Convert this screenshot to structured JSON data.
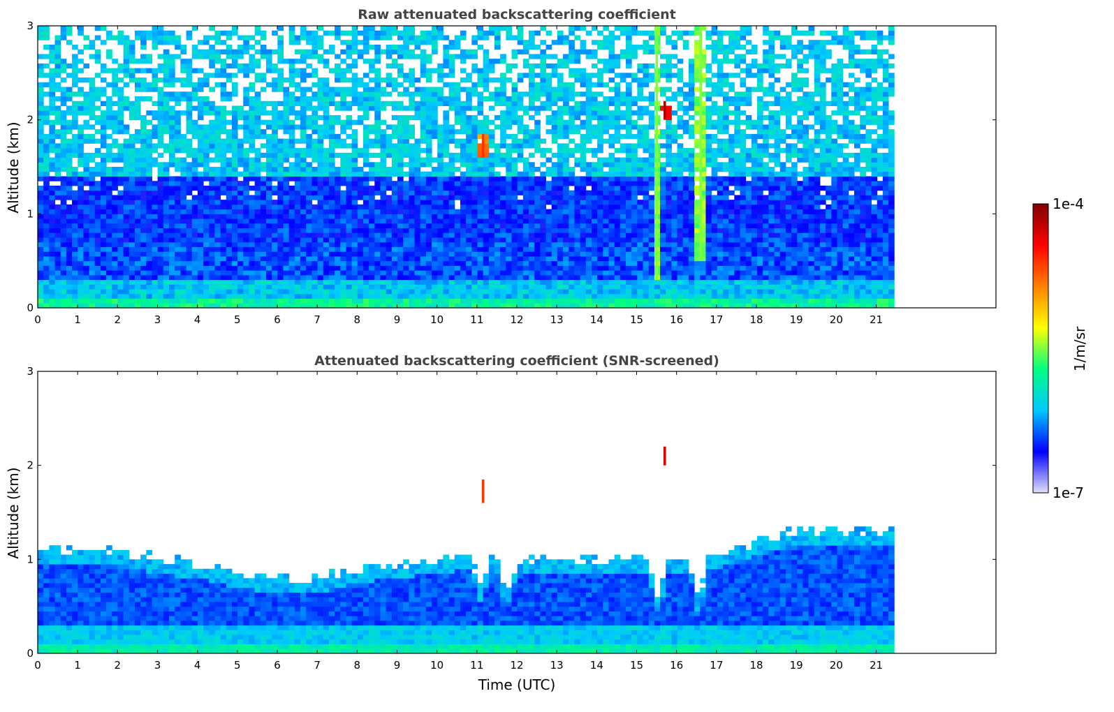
{
  "chart_data": [
    {
      "type": "heatmap",
      "title": "Raw attenuated backscattering coefficient",
      "xlabel": "",
      "ylabel": "Altitude (km)",
      "xlim": [
        0,
        24
      ],
      "ylim": [
        0,
        3
      ],
      "x_ticks": [
        "0",
        "1",
        "2",
        "3",
        "4",
        "5",
        "6",
        "7",
        "8",
        "9",
        "10",
        "11",
        "12",
        "13",
        "14",
        "15",
        "16",
        "17",
        "18",
        "19",
        "20",
        "21"
      ],
      "y_ticks": [
        "0",
        "1",
        "2",
        "3"
      ],
      "data_extent_hours": [
        0,
        21.45
      ],
      "grid": false,
      "layers": [
        {
          "altitude_km": [
            0.0,
            0.1
          ],
          "level": 0.4
        },
        {
          "altitude_km": [
            0.1,
            0.3
          ],
          "level": 0.3
        },
        {
          "altitude_km": [
            0.3,
            0.7
          ],
          "level": 0.2
        },
        {
          "altitude_km": [
            0.7,
            1.4
          ],
          "level": 0.18
        },
        {
          "altitude_km": [
            1.4,
            3.0
          ],
          "level": 0.3
        }
      ],
      "features": [
        {
          "time": 11.15,
          "altitude_km": [
            1.6,
            1.85
          ],
          "level": 0.8
        },
        {
          "time": 15.7,
          "altitude_km": [
            2.0,
            2.2
          ],
          "level": 0.95
        },
        {
          "time": 15.5,
          "altitude_km": [
            0.3,
            3.0
          ],
          "level": 0.5
        },
        {
          "time": 16.6,
          "altitude_km": [
            0.5,
            3.0
          ],
          "level": 0.5
        }
      ]
    },
    {
      "type": "heatmap",
      "title": "Attenuated backscattering coefficient (SNR-screened)",
      "xlabel": "Time (UTC)",
      "ylabel": "Altitude (km)",
      "xlim": [
        0,
        24
      ],
      "ylim": [
        0,
        3
      ],
      "x_ticks": [
        "0",
        "1",
        "2",
        "3",
        "4",
        "5",
        "6",
        "7",
        "8",
        "9",
        "10",
        "11",
        "12",
        "13",
        "14",
        "15",
        "16",
        "17",
        "18",
        "19",
        "20",
        "21"
      ],
      "y_ticks": [
        "0",
        "1",
        "2",
        "3"
      ],
      "data_extent_hours": [
        0,
        21.45
      ],
      "grid": false,
      "boundary_layer_top_km": [
        {
          "t": 0,
          "h": 1.1
        },
        {
          "t": 1,
          "h": 1.1
        },
        {
          "t": 2,
          "h": 1.08
        },
        {
          "t": 3,
          "h": 1.0
        },
        {
          "t": 4,
          "h": 0.95
        },
        {
          "t": 5,
          "h": 0.85
        },
        {
          "t": 6,
          "h": 0.8
        },
        {
          "t": 7,
          "h": 0.8
        },
        {
          "t": 8,
          "h": 0.9
        },
        {
          "t": 9,
          "h": 0.95
        },
        {
          "t": 10,
          "h": 1.0
        },
        {
          "t": 11,
          "h": 1.05
        },
        {
          "t": 12,
          "h": 1.0
        },
        {
          "t": 13,
          "h": 1.0
        },
        {
          "t": 14,
          "h": 1.0
        },
        {
          "t": 15,
          "h": 1.0
        },
        {
          "t": 16,
          "h": 1.0
        },
        {
          "t": 17,
          "h": 1.05
        },
        {
          "t": 18,
          "h": 1.2
        },
        {
          "t": 19,
          "h": 1.3
        },
        {
          "t": 20,
          "h": 1.3
        },
        {
          "t": 21,
          "h": 1.3
        },
        {
          "t": 21.45,
          "h": 1.3
        }
      ],
      "dips": [
        {
          "time": 11.1,
          "to_km": 0.7
        },
        {
          "time": 11.75,
          "to_km": 0.6
        },
        {
          "time": 15.55,
          "to_km": 0.55
        },
        {
          "time": 16.55,
          "to_km": 0.55
        }
      ],
      "features": [
        {
          "time": 11.15,
          "altitude_km": [
            1.6,
            1.85
          ],
          "level": 0.8
        },
        {
          "time": 15.7,
          "altitude_km": [
            2.0,
            2.2
          ],
          "level": 0.9
        }
      ]
    }
  ],
  "colorbar": {
    "label": "1/m/sr",
    "min_label": "1e-7",
    "max_label": "1e-4",
    "stops": [
      "#e0e0f8",
      "#0000ff",
      "#00c8ff",
      "#00ff80",
      "#ffff00",
      "#ff8000",
      "#ff0000",
      "#800000"
    ]
  }
}
